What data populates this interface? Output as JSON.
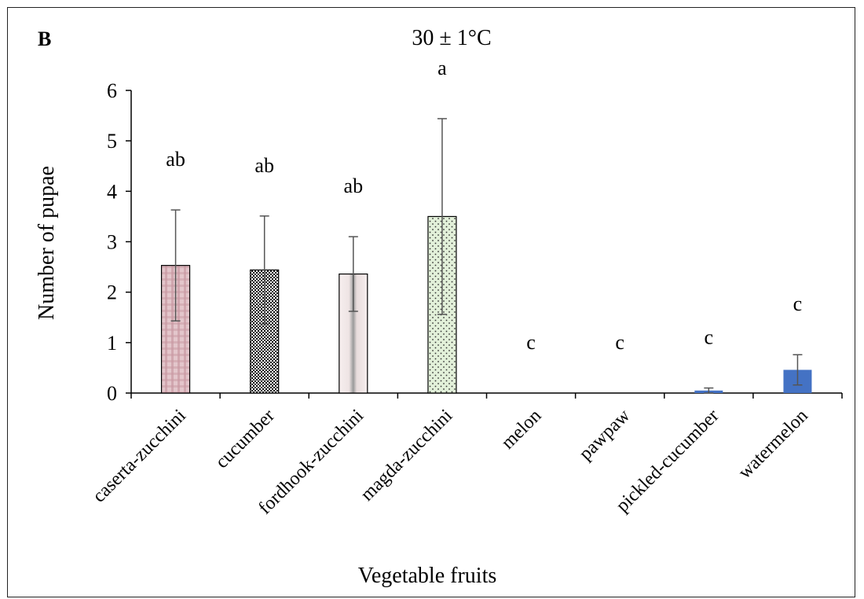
{
  "panel_label": "B",
  "chart_data": {
    "type": "bar",
    "title": "30 ± 1°C",
    "xlabel": "Vegetable fruits",
    "ylabel": "Number of pupae",
    "ylim": [
      0,
      6
    ],
    "yticks": [
      "0",
      "1",
      "2",
      "3",
      "4",
      "5",
      "6"
    ],
    "categories": [
      "caserta-zucchini",
      "cucumber",
      "fordhook-zucchini",
      "magda-zucchini",
      "melon",
      "pawpaw",
      "pickled-cucumber",
      "watermelon"
    ],
    "values": [
      2.53,
      2.44,
      2.36,
      3.5,
      0,
      0,
      0.05,
      0.46
    ],
    "errors": [
      1.1,
      1.07,
      0.74,
      1.94,
      0,
      0,
      0.05,
      0.3
    ],
    "significance_letters": [
      "ab",
      "ab",
      "ab",
      "a",
      "c",
      "c",
      "c",
      "c"
    ],
    "bar_fills": [
      "pink-plaid",
      "crosshatch",
      "gray-streak",
      "green-dots",
      "none",
      "none",
      "blue",
      "blue"
    ],
    "colors": {
      "blue": "#4472C4",
      "pink": "#c89aa2",
      "green": "#e2f0d9",
      "axis": "#000000",
      "error_bar": "#555555"
    },
    "grid": false,
    "legend": "none"
  }
}
